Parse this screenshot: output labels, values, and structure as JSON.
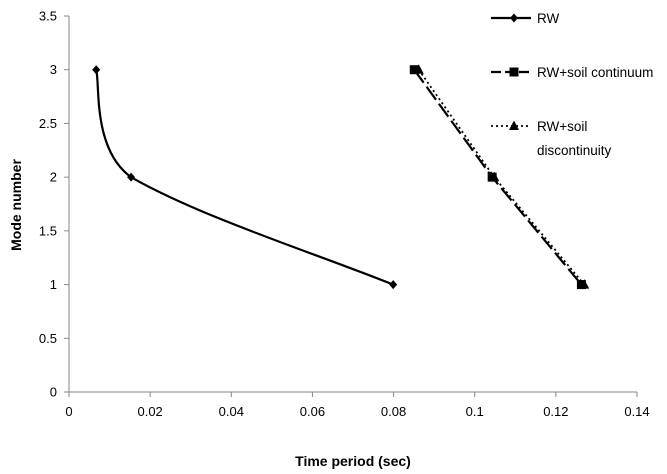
{
  "chart_data": {
    "type": "line",
    "title": "",
    "xlabel": "Time period (sec)",
    "ylabel": "Mode number",
    "xlim": [
      0,
      0.14
    ],
    "ylim": [
      0,
      3.5
    ],
    "x_ticks": [
      "0",
      "0.02",
      "0.04",
      "0.06",
      "0.08",
      "0.1",
      "0.12",
      "0.14"
    ],
    "y_ticks": [
      "0",
      "0.5",
      "1",
      "1.5",
      "2",
      "2.5",
      "3",
      "3.5"
    ],
    "grid": false,
    "legend_position": "right",
    "series": [
      {
        "name": "RW",
        "marker": "diamond",
        "line_style": "solid",
        "smooth": true,
        "color": "#000000",
        "points": [
          {
            "x": 0.0067,
            "y": 3
          },
          {
            "x": 0.0153,
            "y": 2
          },
          {
            "x": 0.0799,
            "y": 1
          }
        ]
      },
      {
        "name": "RW+soil continuum",
        "marker": "square",
        "line_style": "long-dash",
        "smooth": false,
        "color": "#000000",
        "points": [
          {
            "x": 0.0851,
            "y": 3
          },
          {
            "x": 0.1043,
            "y": 2
          },
          {
            "x": 0.1263,
            "y": 1
          }
        ]
      },
      {
        "name": "RW+soil discontinuity",
        "legend_lines": [
          "RW+soil",
          "discontinuity"
        ],
        "marker": "triangle",
        "line_style": "dotted",
        "smooth": false,
        "color": "#000000",
        "points": [
          {
            "x": 0.0862,
            "y": 3
          },
          {
            "x": 0.1048,
            "y": 2
          },
          {
            "x": 0.127,
            "y": 1
          }
        ]
      }
    ]
  }
}
